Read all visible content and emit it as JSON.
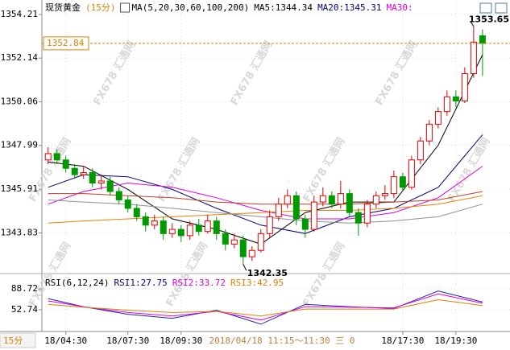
{
  "chart_data": {
    "type": "candlestick",
    "title": "现货黄金",
    "title_period": "(15分)",
    "period_button": "15分",
    "ma_label": "MA(5,20,30,60,100,200)",
    "ma_legend": [
      {
        "text": "MA5:1344.34",
        "color": "#000000"
      },
      {
        "text": "MA20:1345.31",
        "color": "#000080"
      },
      {
        "text": "MA30:",
        "color": "#e000e0"
      }
    ],
    "watermark": "FX678 汇通网",
    "cursor_text": "2018/04/18 11:15～11:30 三 0",
    "up_color": "#e00000",
    "down_color": "#009900",
    "ylim": [
      1341.9,
      1354.9
    ],
    "yticks": [
      1343.83,
      1345.91,
      1347.99,
      1350.06,
      1352.14,
      1354.21
    ],
    "xlim": [
      0.3,
      53.1
    ],
    "xticks": [
      {
        "value": 3,
        "label": "18/04:30"
      },
      {
        "value": 10,
        "label": "18/07:30"
      },
      {
        "value": 16,
        "label": "18/09:30"
      },
      {
        "value": 41,
        "label": "18/17:30"
      },
      {
        "value": 47,
        "label": "18/19:30"
      }
    ],
    "candles": [
      [
        1347.3,
        1347.9,
        1347.1,
        1347.6
      ],
      [
        1347.6,
        1347.8,
        1347.1,
        1347.3
      ],
      [
        1347.3,
        1347.5,
        1346.7,
        1346.9
      ],
      [
        1346.9,
        1347.1,
        1346.4,
        1346.6
      ],
      [
        1346.6,
        1347.0,
        1346.4,
        1346.7
      ],
      [
        1346.7,
        1346.9,
        1346.0,
        1346.2
      ],
      [
        1346.2,
        1346.6,
        1345.9,
        1346.3
      ],
      [
        1346.3,
        1346.5,
        1345.6,
        1345.8
      ],
      [
        1345.8,
        1346.0,
        1345.2,
        1345.4
      ],
      [
        1345.4,
        1345.6,
        1344.8,
        1345.0
      ],
      [
        1345.0,
        1345.2,
        1344.4,
        1344.6
      ],
      [
        1344.6,
        1344.8,
        1343.9,
        1344.2
      ],
      [
        1344.2,
        1344.7,
        1344.0,
        1344.4
      ],
      [
        1344.4,
        1344.6,
        1343.5,
        1343.8
      ],
      [
        1343.8,
        1344.3,
        1343.6,
        1344.0
      ],
      [
        1344.0,
        1344.2,
        1343.4,
        1343.7
      ],
      [
        1343.7,
        1344.4,
        1343.5,
        1344.2
      ],
      [
        1344.2,
        1344.5,
        1343.7,
        1343.9
      ],
      [
        1343.9,
        1344.7,
        1343.8,
        1344.4
      ],
      [
        1344.4,
        1344.6,
        1343.5,
        1343.8
      ],
      [
        1343.8,
        1344.0,
        1343.0,
        1343.3
      ],
      [
        1343.3,
        1343.8,
        1343.1,
        1343.5
      ],
      [
        1343.5,
        1343.7,
        1342.35,
        1342.7
      ],
      [
        1342.7,
        1343.2,
        1342.5,
        1343.0
      ],
      [
        1343.0,
        1344.0,
        1342.9,
        1343.8
      ],
      [
        1343.8,
        1344.9,
        1343.6,
        1344.6
      ],
      [
        1344.6,
        1345.5,
        1344.4,
        1345.2
      ],
      [
        1345.2,
        1345.9,
        1345.0,
        1345.6
      ],
      [
        1345.6,
        1345.8,
        1344.2,
        1344.5
      ],
      [
        1344.5,
        1344.7,
        1343.6,
        1344.0
      ],
      [
        1344.0,
        1345.6,
        1343.9,
        1345.3
      ],
      [
        1345.3,
        1346.0,
        1345.1,
        1345.6
      ],
      [
        1345.6,
        1345.8,
        1345.0,
        1345.2
      ],
      [
        1345.2,
        1346.3,
        1345.0,
        1345.7
      ],
      [
        1345.7,
        1345.9,
        1344.6,
        1344.8
      ],
      [
        1344.8,
        1345.0,
        1343.7,
        1344.3
      ],
      [
        1344.3,
        1345.4,
        1344.1,
        1345.2
      ],
      [
        1345.2,
        1345.8,
        1345.0,
        1345.6
      ],
      [
        1345.6,
        1346.1,
        1345.4,
        1345.7
      ],
      [
        1345.7,
        1346.8,
        1345.5,
        1346.5
      ],
      [
        1346.5,
        1346.7,
        1345.8,
        1346.0
      ],
      [
        1346.0,
        1347.5,
        1345.9,
        1347.3
      ],
      [
        1347.3,
        1348.4,
        1347.1,
        1348.2
      ],
      [
        1348.2,
        1349.2,
        1348.0,
        1349.0
      ],
      [
        1349.0,
        1349.8,
        1348.8,
        1349.6
      ],
      [
        1349.6,
        1350.6,
        1349.4,
        1350.3
      ],
      [
        1350.3,
        1350.6,
        1349.8,
        1350.1
      ],
      [
        1350.1,
        1351.7,
        1350.0,
        1351.4
      ],
      [
        1351.4,
        1353.65,
        1351.2,
        1352.9
      ],
      [
        1353.2,
        1353.5,
        1351.3,
        1352.84
      ]
    ],
    "ma_x": [
      1,
      5,
      10,
      15,
      20,
      25,
      30,
      35,
      40,
      45,
      50
    ],
    "ma_lines": [
      {
        "color": "#000000",
        "values": [
          1347.2,
          1347.0,
          1345.9,
          1344.5,
          1344.0,
          1343.3,
          1344.8,
          1345.3,
          1345.3,
          1348.0,
          1352.3
        ]
      },
      {
        "color": "#000080",
        "values": [
          1346.0,
          1346.6,
          1346.5,
          1345.9,
          1345.0,
          1344.2,
          1343.8,
          1344.6,
          1345.0,
          1346.0,
          1348.5
        ]
      },
      {
        "color": "#e000e0",
        "values": [
          1345.2,
          1345.8,
          1346.2,
          1346.0,
          1345.5,
          1344.9,
          1344.5,
          1344.5,
          1344.8,
          1345.5,
          1347.0
        ]
      },
      {
        "color": "#c04020",
        "values": [
          1345.7,
          1345.7,
          1345.6,
          1345.5,
          1345.3,
          1345.2,
          1345.2,
          1345.2,
          1345.3,
          1345.4,
          1345.8
        ]
      },
      {
        "color": "#909090",
        "values": [
          1345.4,
          1345.3,
          1345.2,
          1345.0,
          1344.8,
          1344.6,
          1344.4,
          1344.3,
          1344.4,
          1344.6,
          1345.2
        ]
      },
      {
        "color": "#f08000",
        "values": [
          1344.3,
          1344.4,
          1344.5,
          1344.6,
          1344.7,
          1344.8,
          1344.9,
          1344.9,
          1345.0,
          1345.2,
          1345.6
        ]
      }
    ],
    "rsi": {
      "label": "RSI(6,12,24)",
      "legend": [
        {
          "text": "RSI1:27.75",
          "color": "#000080"
        },
        {
          "text": "RSI2:33.72",
          "color": "#e000e0"
        },
        {
          "text": "RSI3:42.95",
          "color": "#e08000"
        }
      ],
      "ylim": [
        18.1,
        110.9
      ],
      "yticks": [
        52.74,
        88.72
      ],
      "series": [
        {
          "color": "#2020c0",
          "values": [
            72,
            58,
            45,
            38,
            52,
            28,
            62,
            58,
            55,
            85,
            66
          ]
        },
        {
          "color": "#e000e0",
          "values": [
            68,
            58,
            48,
            42,
            50,
            35,
            58,
            57,
            56,
            80,
            64
          ]
        },
        {
          "color": "#e08000",
          "values": [
            62,
            57,
            52,
            48,
            50,
            42,
            54,
            54,
            54,
            70,
            60
          ]
        }
      ]
    }
  }
}
